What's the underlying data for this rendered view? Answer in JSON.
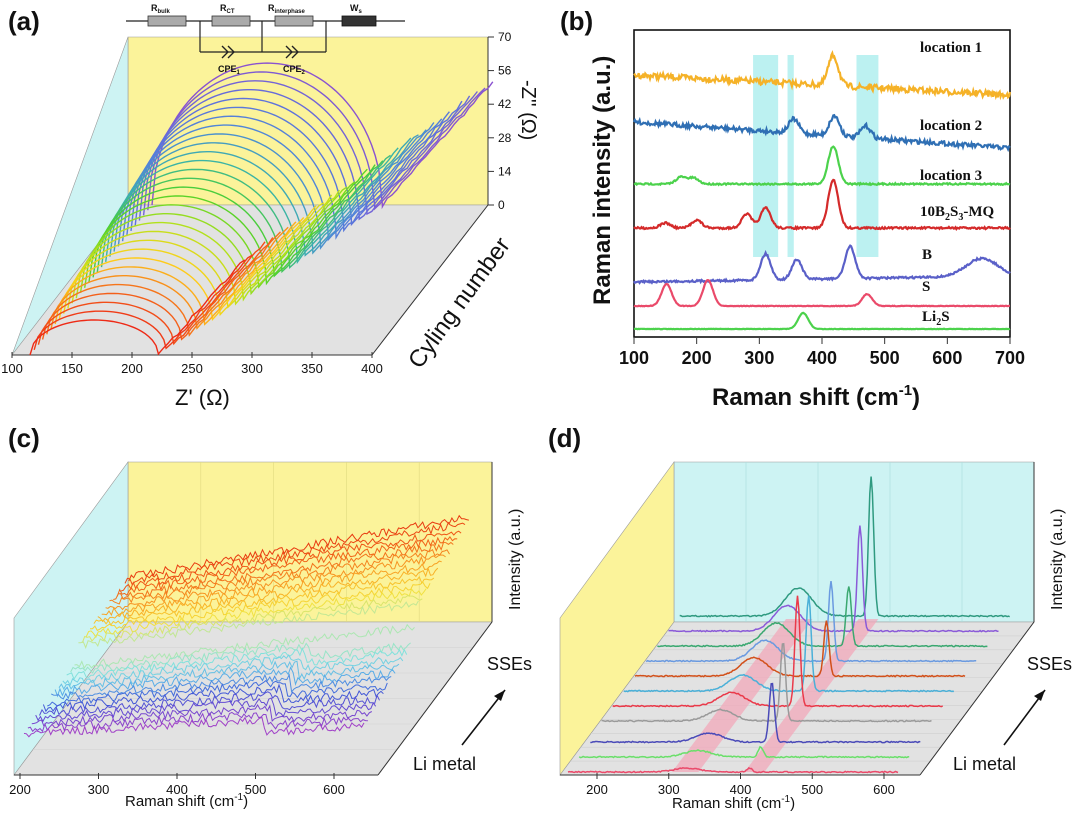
{
  "panel_labels": [
    "(a)",
    "(b)",
    "(c)",
    "(d)"
  ],
  "colors": {
    "yellow_wall": "#fbf39a",
    "cyan_wall": "#cdf3f3",
    "grey_floor": "#e2e2e2",
    "highlight_cyan": "#8fe8e8",
    "highlight_pink": "#f3a5b8"
  },
  "chart_data": [
    {
      "id": "a",
      "type": "line",
      "projection": "3d-waterfall",
      "xlabel": "Z' (Ω)",
      "zlabel": "-Z'' (Ω)",
      "ylabel": "Cyling number",
      "xticks": [
        "100",
        "150",
        "200",
        "250",
        "300",
        "350",
        "400"
      ],
      "zticks": [
        "0",
        "14",
        "28",
        "42",
        "56",
        "70"
      ],
      "xlim": [
        100,
        400
      ],
      "zlim": [
        0,
        70
      ],
      "palette": [
        "#ee2a16",
        "#f56a1a",
        "#ffd21a",
        "#b6e21a",
        "#4cd12a",
        "#3ab3a9",
        "#4f88d8",
        "#6070dc",
        "#8a52d0"
      ],
      "series_count": 30,
      "circuit": {
        "elements": [
          "R",
          "bulk",
          "R",
          "CT",
          "R",
          "interphase",
          "W",
          "s",
          "CPE",
          "1",
          "CPE",
          "2"
        ]
      }
    },
    {
      "id": "b",
      "type": "line",
      "xlabel": "Raman shift (cm",
      "xlabel_sup": "-1",
      "xlabel_end": ")",
      "ylabel": "Raman intensity (a.u.)",
      "xlim": [
        100,
        700
      ],
      "xticks": [
        "100",
        "200",
        "300",
        "400",
        "500",
        "600",
        "700"
      ],
      "highlight_bands": [
        [
          290,
          330
        ],
        [
          345,
          355
        ],
        [
          455,
          490
        ]
      ],
      "series": [
        {
          "label": "location 1",
          "color": "#f5b228",
          "peaks": [
            [
              418,
              30
            ]
          ],
          "baseline": [
            75,
            95
          ],
          "noise": 3
        },
        {
          "label": "location 2",
          "color": "#2f6fb4",
          "peaks": [
            [
              355,
              14
            ],
            [
              420,
              20
            ],
            [
              470,
              12
            ]
          ],
          "baseline": [
            122,
            148
          ],
          "noise": 2.2
        },
        {
          "label": "location 3",
          "color": "#4cd24c",
          "peaks": [
            [
              418,
              38
            ],
            [
              175,
              7
            ],
            [
              195,
              6
            ]
          ],
          "baseline": [
            184,
            184
          ],
          "noise": 0.8
        },
        {
          "label": "10B",
          "label_sub1": "2",
          "label_mid": "S",
          "label_sub2": "3",
          "label_end": "-MQ",
          "color": "#d42a2a",
          "peaks": [
            [
              418,
              48
            ],
            [
              310,
              20
            ],
            [
              280,
              14
            ],
            [
              200,
              8
            ],
            [
              150,
              5
            ]
          ],
          "baseline": [
            228,
            228
          ],
          "noise": 1
        },
        {
          "label": "B",
          "color": "#5a60c8",
          "peaks": [
            [
              445,
              32
            ],
            [
              310,
              26
            ],
            [
              360,
              20
            ],
            [
              655,
              18
            ]
          ],
          "baseline": [
            282,
            276
          ],
          "noise": 1
        },
        {
          "label": "S",
          "color": "#ea4a6a",
          "peaks": [
            [
              152,
              22
            ],
            [
              218,
              26
            ],
            [
              472,
              12
            ]
          ],
          "baseline": [
            306,
            306
          ],
          "noise": 0.3
        },
        {
          "label": "Li",
          "label_sub1": "2",
          "label_mid": "S",
          "color": "#4cd24c",
          "peaks": [
            [
              370,
              16
            ]
          ],
          "baseline": [
            329,
            329
          ],
          "noise": 0.2
        }
      ]
    },
    {
      "id": "c",
      "type": "line",
      "projection": "3d-waterfall",
      "xlabel": "Raman shift (cm",
      "xlabel_sup": "-1",
      "xlabel_end": ")",
      "zlabel": "Intensity (a.u.)",
      "ylabel_top": "SSEs",
      "ylabel_bottom": "Li metal",
      "xticks": [
        "200",
        "300",
        "400",
        "500",
        "600"
      ],
      "xlim": [
        200,
        650
      ],
      "palette": [
        "#a040c8",
        "#6a4ad2",
        "#3c5ad8",
        "#5ab0e8",
        "#7ee0e0",
        "#b6e8a8",
        "#f5e03a",
        "#f8b428",
        "#f58a20",
        "#f06018",
        "#e83a10"
      ],
      "series_count": 28
    },
    {
      "id": "d",
      "type": "line",
      "projection": "3d-waterfall",
      "xlabel": "Raman shift (cm",
      "xlabel_sup": "-1",
      "xlabel_end": ")",
      "zlabel": "Intensity (a.u.)",
      "ylabel_top": "SSEs",
      "ylabel_bottom": "Li metal",
      "xticks": [
        "200",
        "300",
        "400",
        "500",
        "600"
      ],
      "xlim": [
        150,
        650
      ],
      "highlight_bands": [
        [
          300,
          340
        ],
        [
          410,
          440
        ]
      ],
      "series": [
        {
          "color": "#ea4a6a",
          "peak": 425,
          "height": 4
        },
        {
          "color": "#6adf6a",
          "peak": 425,
          "height": 10
        },
        {
          "color": "#4a4ab8",
          "peak": 425,
          "height": 60
        },
        {
          "color": "#9a9a9a",
          "peak": 425,
          "height": 80
        },
        {
          "color": "#ea3a4a",
          "peak": 430,
          "height": 110
        },
        {
          "color": "#4ab0d8",
          "peak": 430,
          "height": 95
        },
        {
          "color": "#d2501a",
          "peak": 440,
          "height": 55
        },
        {
          "color": "#6a9ae0",
          "peak": 430,
          "height": 80
        },
        {
          "color": "#3aa870",
          "peak": 440,
          "height": 60
        },
        {
          "color": "#8a5ad8",
          "peak": 440,
          "height": 105
        },
        {
          "color": "#2f9a80",
          "peak": 440,
          "height": 140
        }
      ]
    }
  ]
}
